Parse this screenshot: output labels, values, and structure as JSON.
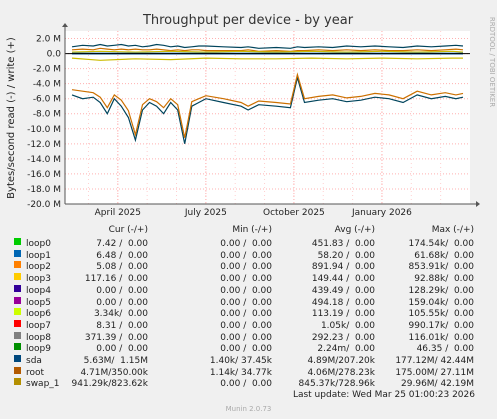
{
  "chart_data": {
    "type": "line",
    "title": "Throughput per device - by year",
    "ylabel": "Bytes/second read (-) / write (+)",
    "side_credit": "RRDTOOL / TOBI OETIKER",
    "y_ticks": [
      "2.0 M",
      "0.0",
      "-2.0 M",
      "-4.0 M",
      "-6.0 M",
      "-8.0 M",
      "-10.0 M",
      "-12.0 M",
      "-14.0 M",
      "-16.0 M",
      "-18.0 M",
      "-20.0 M"
    ],
    "y_tick_values": [
      2,
      0,
      -2,
      -4,
      -6,
      -8,
      -10,
      -12,
      -14,
      -16,
      -18,
      -20
    ],
    "x_ticks": [
      "April 2025",
      "July 2025",
      "October 2025",
      "January 2026"
    ],
    "x_tick_values": [
      2025.25,
      2025.5,
      2025.75,
      2026.0
    ],
    "xlim": [
      2025.1,
      2026.25
    ],
    "ylim": [
      -20,
      3
    ],
    "grid": true,
    "y_unit": "M bytes/second",
    "series": [
      {
        "name": "sda",
        "color": "#00445c",
        "x": [
          2025.12,
          2025.15,
          2025.18,
          2025.2,
          2025.22,
          2025.24,
          2025.26,
          2025.28,
          2025.3,
          2025.32,
          2025.34,
          2025.36,
          2025.38,
          2025.4,
          2025.42,
          2025.44,
          2025.46,
          2025.48,
          2025.5,
          2025.55,
          2025.6,
          2025.62,
          2025.65,
          2025.7,
          2025.74,
          2025.76,
          2025.78,
          2025.82,
          2025.86,
          2025.9,
          2025.94,
          2025.98,
          2026.02,
          2026.06,
          2026.1,
          2026.14,
          2026.18,
          2026.21,
          2026.23
        ],
        "read": [
          -5.5,
          -6.0,
          -5.8,
          -6.5,
          -8.0,
          -6.0,
          -7.0,
          -8.5,
          -11.5,
          -7.5,
          -6.5,
          -7.0,
          -8.0,
          -6.5,
          -7.5,
          -12.0,
          -7.0,
          -6.5,
          -6.0,
          -6.5,
          -7.0,
          -7.5,
          -6.8,
          -7.0,
          -7.2,
          -3.2,
          -6.5,
          -6.2,
          -6.0,
          -6.4,
          -6.2,
          -5.8,
          -6.0,
          -6.5,
          -5.5,
          -6.0,
          -5.7,
          -6.0,
          -5.8
        ],
        "write": [
          0.9,
          1.1,
          1.0,
          1.2,
          1.0,
          1.1,
          1.2,
          1.0,
          1.1,
          0.9,
          1.0,
          1.2,
          1.1,
          0.9,
          1.0,
          0.8,
          0.9,
          1.0,
          1.0,
          0.9,
          0.8,
          0.9,
          0.7,
          0.8,
          0.7,
          0.9,
          0.8,
          0.9,
          0.8,
          1.0,
          0.9,
          1.0,
          0.9,
          0.8,
          1.0,
          0.9,
          1.0,
          1.1,
          1.0
        ]
      },
      {
        "name": "root",
        "color": "#cc7000",
        "x": [
          2025.12,
          2025.15,
          2025.18,
          2025.2,
          2025.22,
          2025.24,
          2025.26,
          2025.28,
          2025.3,
          2025.32,
          2025.34,
          2025.36,
          2025.38,
          2025.4,
          2025.42,
          2025.44,
          2025.46,
          2025.48,
          2025.5,
          2025.55,
          2025.6,
          2025.62,
          2025.65,
          2025.7,
          2025.74,
          2025.76,
          2025.78,
          2025.82,
          2025.86,
          2025.9,
          2025.94,
          2025.98,
          2026.02,
          2026.06,
          2026.1,
          2026.14,
          2026.18,
          2026.21,
          2026.23
        ],
        "read": [
          -4.8,
          -5.0,
          -5.2,
          -5.8,
          -7.2,
          -5.5,
          -6.2,
          -7.6,
          -10.8,
          -6.8,
          -6.0,
          -6.4,
          -7.2,
          -6.0,
          -6.8,
          -11.2,
          -6.4,
          -6.0,
          -5.6,
          -6.0,
          -6.5,
          -7.0,
          -6.3,
          -6.5,
          -6.7,
          -2.8,
          -6.0,
          -5.7,
          -5.5,
          -5.9,
          -5.7,
          -5.3,
          -5.5,
          -6.0,
          -5.0,
          -5.5,
          -5.2,
          -5.5,
          -5.3
        ],
        "write": [
          0.5,
          0.6,
          0.5,
          0.7,
          0.6,
          0.5,
          0.6,
          0.5,
          0.6,
          0.5,
          0.5,
          0.6,
          0.5,
          0.4,
          0.5,
          0.4,
          0.5,
          0.5,
          0.4,
          0.4,
          0.4,
          0.5,
          0.3,
          0.4,
          0.3,
          0.4,
          0.4,
          0.5,
          0.4,
          0.5,
          0.4,
          0.5,
          0.4,
          0.4,
          0.5,
          0.4,
          0.5,
          0.6,
          0.5
        ]
      },
      {
        "name": "swap_1",
        "color": "#ccbb00",
        "x": [
          2025.12,
          2025.2,
          2025.3,
          2025.4,
          2025.5,
          2025.6,
          2025.7,
          2025.8,
          2025.9,
          2026.0,
          2026.1,
          2026.2,
          2026.23
        ],
        "read": [
          -0.6,
          -0.9,
          -0.7,
          -0.8,
          -0.6,
          -0.7,
          -0.7,
          -0.6,
          -0.7,
          -0.6,
          -0.7,
          -0.6,
          -0.6
        ],
        "write": [
          0.2,
          0.3,
          0.2,
          0.3,
          0.2,
          0.3,
          0.2,
          0.3,
          0.2,
          0.3,
          0.2,
          0.3,
          0.2
        ]
      },
      {
        "name": "loop1",
        "color": "#0066b3",
        "x": [
          2025.12,
          2025.3,
          2025.5,
          2025.7,
          2025.9,
          2026.1,
          2026.23
        ],
        "read": [
          -0.05,
          -0.05,
          -0.05,
          -0.05,
          -0.05,
          -0.05,
          -0.05
        ],
        "write": [
          0.05,
          0.05,
          0.05,
          0.05,
          0.05,
          0.05,
          0.05
        ]
      }
    ]
  },
  "legend": {
    "headers": {
      "cur": "Cur (-/+)",
      "min": "Min (-/+)",
      "avg": "Avg (-/+)",
      "max": "Max (-/+)"
    },
    "rows": [
      {
        "name": "loop0",
        "color": "#00cc00",
        "cur": "7.42 /  0.00",
        "min": "0.00 /  0.00",
        "avg": "451.83 /  0.00",
        "max": "174.54k/  0.00"
      },
      {
        "name": "loop1",
        "color": "#0066b3",
        "cur": "6.48 /  0.00",
        "min": "0.00 /  0.00",
        "avg": "58.20 /  0.00",
        "max": "61.68k/  0.00"
      },
      {
        "name": "loop2",
        "color": "#ff8000",
        "cur": "5.08 /  0.00",
        "min": "0.00 /  0.00",
        "avg": "891.94 /  0.00",
        "max": "853.91k/  0.00"
      },
      {
        "name": "loop3",
        "color": "#ffcc00",
        "cur": "117.16 /  0.00",
        "min": "0.00 /  0.00",
        "avg": "149.44 /  0.00",
        "max": "92.88k/  0.00"
      },
      {
        "name": "loop4",
        "color": "#330099",
        "cur": "0.00 /  0.00",
        "min": "0.00 /  0.00",
        "avg": "439.49 /  0.00",
        "max": "128.29k/  0.00"
      },
      {
        "name": "loop5",
        "color": "#990099",
        "cur": "0.00 /  0.00",
        "min": "0.00 /  0.00",
        "avg": "494.18 /  0.00",
        "max": "159.04k/  0.00"
      },
      {
        "name": "loop6",
        "color": "#ccff00",
        "cur": "3.34k/  0.00",
        "min": "0.00 /  0.00",
        "avg": "113.19 /  0.00",
        "max": "105.55k/  0.00"
      },
      {
        "name": "loop7",
        "color": "#ff0000",
        "cur": "8.31 /  0.00",
        "min": "0.00 /  0.00",
        "avg": "1.05k/  0.00",
        "max": "990.17k/  0.00"
      },
      {
        "name": "loop8",
        "color": "#808080",
        "cur": "371.39 /  0.00",
        "min": "0.00 /  0.00",
        "avg": "292.23 /  0.00",
        "max": "116.01k/  0.00"
      },
      {
        "name": "loop9",
        "color": "#008f00",
        "cur": "0.00 /  0.00",
        "min": "0.00 /  0.00",
        "avg": "2.24m/  0.00",
        "max": "46.35 /  0.00"
      },
      {
        "name": "sda",
        "color": "#00487d",
        "cur": "5.63M/  1.15M",
        "min": "1.40k/ 37.45k",
        "avg": "4.89M/207.20k",
        "max": "177.12M/ 42.44M"
      },
      {
        "name": "root",
        "color": "#b35a00",
        "cur": "4.71M/350.00k",
        "min": "1.14k/ 34.77k",
        "avg": "4.06M/278.23k",
        "max": "175.00M/ 27.11M"
      },
      {
        "name": "swap_1",
        "color": "#b38f00",
        "cur": "941.29k/823.62k",
        "min": "0.00 /  0.00",
        "avg": "845.37k/728.96k",
        "max": "29.96M/ 42.19M"
      }
    ]
  },
  "footer": {
    "last_update": "Last update: Wed Mar 25 01:00:23 2026",
    "credit": "Munin 2.0.73"
  }
}
